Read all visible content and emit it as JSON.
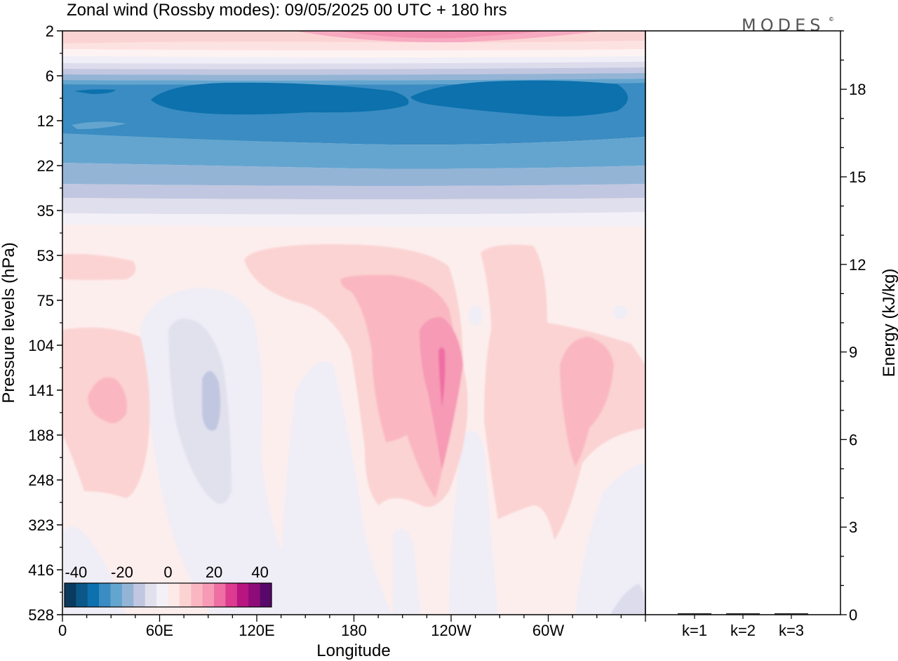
{
  "title": "Zonal wind (Rossby modes):  09/05/2025  00 UTC  + 180 hrs",
  "logo": "MODES",
  "logo_mark": "©",
  "chart_data": [
    {
      "type": "heatmap",
      "title": "Zonal wind (Rossby modes):  09/05/2025  00 UTC  + 180 hrs",
      "xlabel": "Longitude",
      "ylabel": "Pressure levels (hPa)",
      "x_tick_labels": [
        "0",
        "60E",
        "120E",
        "180",
        "120W",
        "60W"
      ],
      "x_tick_degrees": [
        0,
        60,
        120,
        180,
        240,
        300
      ],
      "xlim": [
        0,
        360
      ],
      "y_tick_labels": [
        "2",
        "6",
        "12",
        "22",
        "35",
        "53",
        "75",
        "104",
        "141",
        "188",
        "248",
        "323",
        "416",
        "528"
      ],
      "colorbar": {
        "tick_labels": [
          "-40",
          "-20",
          "0",
          "20",
          "40"
        ],
        "tick_values": [
          -40,
          -20,
          0,
          20,
          40
        ],
        "range": [
          -45,
          45
        ],
        "colors": [
          "#0a3b5f",
          "#0b5787",
          "#0c71ad",
          "#3a8cc2",
          "#64a5cf",
          "#94b4d6",
          "#c1c7e0",
          "#e1e1ee",
          "#f3f0f7",
          "#fde9e7",
          "#fbd3d3",
          "#fab7c1",
          "#f69ab6",
          "#ef6ea3",
          "#dc3b8f",
          "#b91581",
          "#8d0c79",
          "#58086a"
        ]
      },
      "bands": [
        {
          "level_index_from": 0.0,
          "level_index_to": 0.35,
          "approx_value": 15
        },
        {
          "level_index_from": 0.35,
          "level_index_to": 0.6,
          "approx_value": 5
        },
        {
          "level_index_from": 0.9,
          "level_index_to": 1.2,
          "approx_value": -15
        },
        {
          "level_index_from": 1.2,
          "level_index_to": 2.0,
          "approx_value": -30
        },
        {
          "level_index_from": 2.0,
          "level_index_to": 3.0,
          "approx_value": -22
        },
        {
          "level_index_from": 3.0,
          "level_index_to": 3.5,
          "approx_value": -12
        },
        {
          "level_index_from": 3.5,
          "level_index_to": 4.3,
          "approx_value": -4
        },
        {
          "level_index_from": 4.3,
          "level_index_to": 13.0,
          "approx_value": 2
        }
      ]
    },
    {
      "type": "bar",
      "ylabel": "Energy (kJ/kg)",
      "categories": [
        "k=1",
        "k=2",
        "k=3"
      ],
      "values": [
        0.02,
        0.01,
        0.01
      ],
      "y_tick_labels": [
        "0",
        "3",
        "6",
        "9",
        "12",
        "15",
        "18"
      ],
      "ylim": [
        0,
        20
      ]
    }
  ]
}
